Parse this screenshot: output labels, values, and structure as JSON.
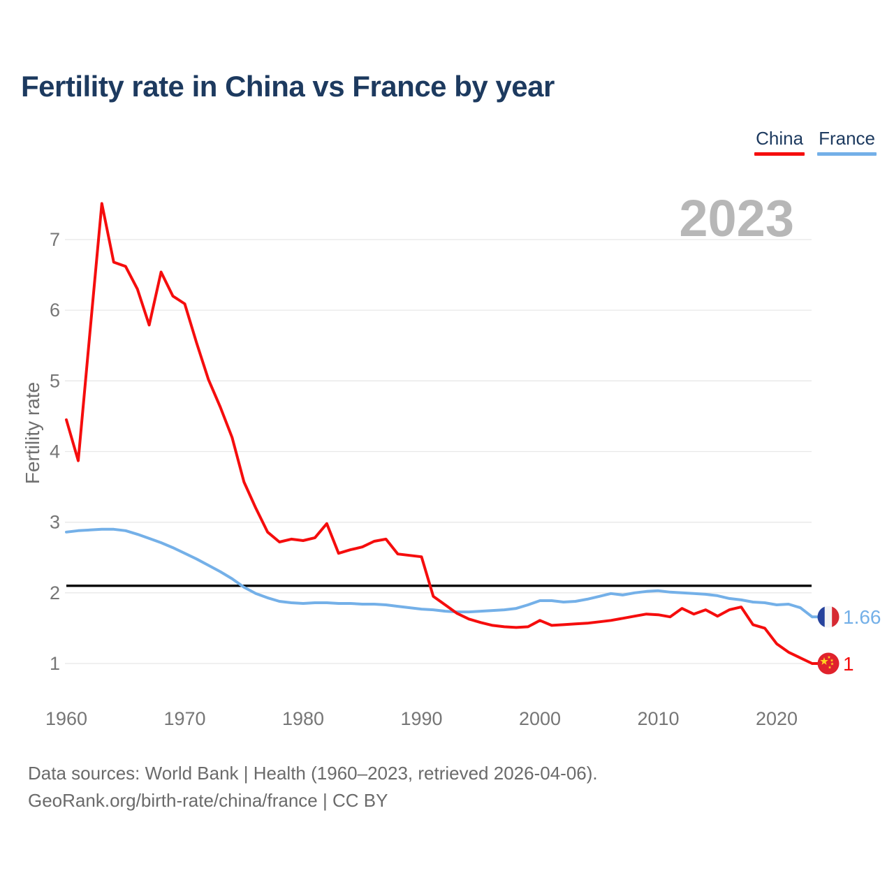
{
  "header": {
    "title": "Fertility rate in China vs France by year"
  },
  "legend": {
    "items": [
      {
        "label": "China",
        "color": "#f50d0d"
      },
      {
        "label": "France",
        "color": "#74b0e8"
      }
    ]
  },
  "watermark": "2023",
  "y_axis": {
    "label": "Fertility rate"
  },
  "footer": {
    "line1": "Data sources: World Bank | Health (1960–2023, retrieved 2026-04-06).",
    "line2": "GeoRank.org/birth-rate/china/france | CC BY"
  },
  "chart_data": {
    "type": "line",
    "title": "Fertility rate in China vs France by year",
    "ylabel": "Fertility rate",
    "grid": "horizontal",
    "legend_position": "top-right",
    "xlim": [
      1960,
      2023
    ],
    "ylim": [
      0.6,
      7.6
    ],
    "y_ticks": [
      1,
      2,
      3,
      4,
      5,
      6,
      7
    ],
    "x_ticks": [
      1960,
      1970,
      1980,
      1990,
      2000,
      2010,
      2020
    ],
    "replacement_line_y": 2.1,
    "x": [
      1960,
      1961,
      1962,
      1963,
      1964,
      1965,
      1966,
      1967,
      1968,
      1969,
      1970,
      1971,
      1972,
      1973,
      1974,
      1975,
      1976,
      1977,
      1978,
      1979,
      1980,
      1981,
      1982,
      1983,
      1984,
      1985,
      1986,
      1987,
      1988,
      1989,
      1990,
      1991,
      1992,
      1993,
      1994,
      1995,
      1996,
      1997,
      1998,
      1999,
      2000,
      2001,
      2002,
      2003,
      2004,
      2005,
      2006,
      2007,
      2008,
      2009,
      2010,
      2011,
      2012,
      2013,
      2014,
      2015,
      2016,
      2017,
      2018,
      2019,
      2020,
      2021,
      2022,
      2023
    ],
    "series": [
      {
        "name": "China",
        "color": "#f50d0d",
        "values": [
          4.45,
          3.87,
          5.7,
          7.51,
          6.68,
          6.62,
          6.3,
          5.79,
          6.54,
          6.2,
          6.09,
          5.54,
          5.02,
          4.63,
          4.2,
          3.57,
          3.2,
          2.86,
          2.72,
          2.76,
          2.74,
          2.78,
          2.98,
          2.56,
          2.61,
          2.65,
          2.73,
          2.76,
          2.55,
          2.53,
          2.51,
          1.95,
          1.83,
          1.71,
          1.63,
          1.58,
          1.54,
          1.52,
          1.51,
          1.52,
          1.61,
          1.54,
          1.55,
          1.56,
          1.57,
          1.59,
          1.61,
          1.64,
          1.67,
          1.7,
          1.69,
          1.66,
          1.78,
          1.7,
          1.76,
          1.67,
          1.76,
          1.8,
          1.55,
          1.5,
          1.28,
          1.16,
          1.08,
          1.0
        ]
      },
      {
        "name": "France",
        "color": "#74b0e8",
        "values": [
          2.86,
          2.88,
          2.89,
          2.9,
          2.9,
          2.88,
          2.83,
          2.77,
          2.71,
          2.64,
          2.56,
          2.48,
          2.39,
          2.3,
          2.2,
          2.08,
          1.99,
          1.93,
          1.88,
          1.86,
          1.85,
          1.86,
          1.86,
          1.85,
          1.85,
          1.84,
          1.84,
          1.83,
          1.81,
          1.79,
          1.77,
          1.76,
          1.74,
          1.73,
          1.73,
          1.74,
          1.75,
          1.76,
          1.78,
          1.83,
          1.89,
          1.89,
          1.87,
          1.88,
          1.91,
          1.95,
          1.99,
          1.97,
          2.0,
          2.02,
          2.03,
          2.01,
          2.0,
          1.99,
          1.98,
          1.96,
          1.92,
          1.9,
          1.87,
          1.86,
          1.83,
          1.84,
          1.79,
          1.66
        ]
      }
    ],
    "end_labels": [
      {
        "series": "France",
        "text": "1.66",
        "flag": "france"
      },
      {
        "series": "China",
        "text": "1",
        "flag": "china"
      }
    ]
  }
}
